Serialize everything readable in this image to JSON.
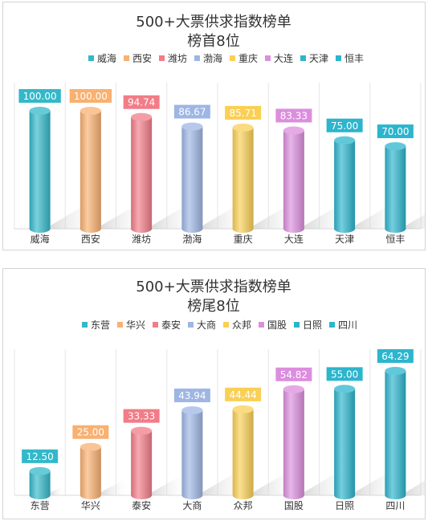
{
  "chart_data": [
    {
      "type": "bar",
      "title": "500+大票供求指数榜单",
      "subtitle": "榜首8位",
      "categories": [
        "威海",
        "西安",
        "潍坊",
        "渤海",
        "重庆",
        "大连",
        "天津",
        "恒丰"
      ],
      "values": [
        100.0,
        100.0,
        94.74,
        86.67,
        85.71,
        83.33,
        75.0,
        70.0
      ],
      "labels": [
        "100.00",
        "100.00",
        "94.74",
        "86.67",
        "85.71",
        "83.33",
        "75.00",
        "70.00"
      ],
      "colors": [
        "#33b8c9",
        "#f9b070",
        "#f27c87",
        "#9db6e4",
        "#f9cf55",
        "#dc8ede",
        "#2cb5cd",
        "#2cb5cd"
      ],
      "legend": [
        "威海",
        "西安",
        "潍坊",
        "渤海",
        "重庆",
        "大连",
        "天津",
        "恒丰"
      ],
      "legend_position": "top",
      "ylim": [
        0,
        100
      ],
      "grid": "vertical"
    },
    {
      "type": "bar",
      "title": "500+大票供求指数榜单",
      "subtitle": "榜尾8位",
      "categories": [
        "东营",
        "华兴",
        "泰安",
        "大商",
        "众邦",
        "国股",
        "日照",
        "四川"
      ],
      "values": [
        12.5,
        25.0,
        33.33,
        43.94,
        44.44,
        54.82,
        55.0,
        64.29
      ],
      "labels": [
        "12.50",
        "25.00",
        "33.33",
        "43.94",
        "44.44",
        "54.82",
        "55.00",
        "64.29"
      ],
      "colors": [
        "#33b8c9",
        "#f9b070",
        "#f27c87",
        "#9db6e4",
        "#f9cf55",
        "#dc8ede",
        "#2cb5cd",
        "#2cb5cd"
      ],
      "legend": [
        "东营",
        "华兴",
        "泰安",
        "大商",
        "众邦",
        "国股",
        "日照",
        "四川"
      ],
      "legend_position": "top",
      "ylim": [
        0,
        64.29
      ],
      "grid": "vertical"
    }
  ]
}
